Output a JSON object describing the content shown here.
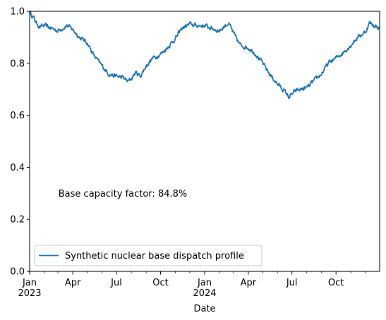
{
  "chart_data": {
    "type": "line",
    "title": "",
    "xlabel": "Date",
    "ylabel": "",
    "ylim": [
      0.0,
      1.0
    ],
    "yticks": [
      0.0,
      0.2,
      0.4,
      0.6,
      0.8,
      1.0
    ],
    "ytick_labels": [
      "0.0",
      "0.2",
      "0.4",
      "0.6",
      "0.8",
      "1.0"
    ],
    "xlim": [
      "2023-01-01",
      "2024-12-31"
    ],
    "xticks": [
      {
        "date": "2023-01-01",
        "label": "Jan",
        "sublabel": "2023"
      },
      {
        "date": "2023-04-01",
        "label": "Apr",
        "sublabel": ""
      },
      {
        "date": "2023-07-01",
        "label": "Jul",
        "sublabel": ""
      },
      {
        "date": "2023-10-01",
        "label": "Oct",
        "sublabel": ""
      },
      {
        "date": "2024-01-01",
        "label": "Jan",
        "sublabel": "2024"
      },
      {
        "date": "2024-04-01",
        "label": "Apr",
        "sublabel": ""
      },
      {
        "date": "2024-07-01",
        "label": "Jul",
        "sublabel": ""
      },
      {
        "date": "2024-10-01",
        "label": "Oct",
        "sublabel": ""
      }
    ],
    "grid": false,
    "legend": {
      "placement": "lower-left",
      "entries": [
        "Synthetic nuclear base dispatch profile"
      ]
    },
    "annotations": [
      {
        "text": "Base capacity factor: 84.8%",
        "x": "2023-03-02",
        "y": 0.3
      }
    ],
    "series": [
      {
        "name": "Synthetic nuclear base dispatch profile",
        "color": "#1f77b4",
        "x": [
          "2023-01-01",
          "2023-01-08",
          "2023-01-15",
          "2023-01-22",
          "2023-02-01",
          "2023-02-15",
          "2023-03-01",
          "2023-03-10",
          "2023-03-20",
          "2023-04-01",
          "2023-04-15",
          "2023-05-01",
          "2023-05-15",
          "2023-06-01",
          "2023-06-15",
          "2023-07-01",
          "2023-07-15",
          "2023-07-25",
          "2023-08-01",
          "2023-08-10",
          "2023-08-20",
          "2023-09-01",
          "2023-09-15",
          "2023-10-01",
          "2023-10-15",
          "2023-11-01",
          "2023-11-15",
          "2023-12-01",
          "2023-12-15",
          "2024-01-01",
          "2024-01-15",
          "2024-02-01",
          "2024-02-10",
          "2024-02-20",
          "2024-03-01",
          "2024-03-15",
          "2024-04-01",
          "2024-04-15",
          "2024-05-01",
          "2024-05-15",
          "2024-06-01",
          "2024-06-15",
          "2024-06-25",
          "2024-07-01",
          "2024-07-10",
          "2024-07-20",
          "2024-08-01",
          "2024-08-15",
          "2024-09-01",
          "2024-09-15",
          "2024-10-01",
          "2024-10-15",
          "2024-11-01",
          "2024-11-15",
          "2024-12-01",
          "2024-12-10",
          "2024-12-20",
          "2024-12-31"
        ],
        "values": [
          0.995,
          0.98,
          0.955,
          0.94,
          0.945,
          0.935,
          0.925,
          0.935,
          0.945,
          0.93,
          0.9,
          0.88,
          0.83,
          0.79,
          0.76,
          0.75,
          0.745,
          0.73,
          0.74,
          0.765,
          0.75,
          0.79,
          0.82,
          0.835,
          0.86,
          0.895,
          0.935,
          0.95,
          0.945,
          0.945,
          0.935,
          0.925,
          0.94,
          0.955,
          0.915,
          0.87,
          0.86,
          0.84,
          0.8,
          0.76,
          0.72,
          0.695,
          0.67,
          0.68,
          0.695,
          0.7,
          0.705,
          0.73,
          0.76,
          0.8,
          0.82,
          0.84,
          0.87,
          0.9,
          0.92,
          0.955,
          0.945,
          0.935
        ]
      }
    ]
  }
}
